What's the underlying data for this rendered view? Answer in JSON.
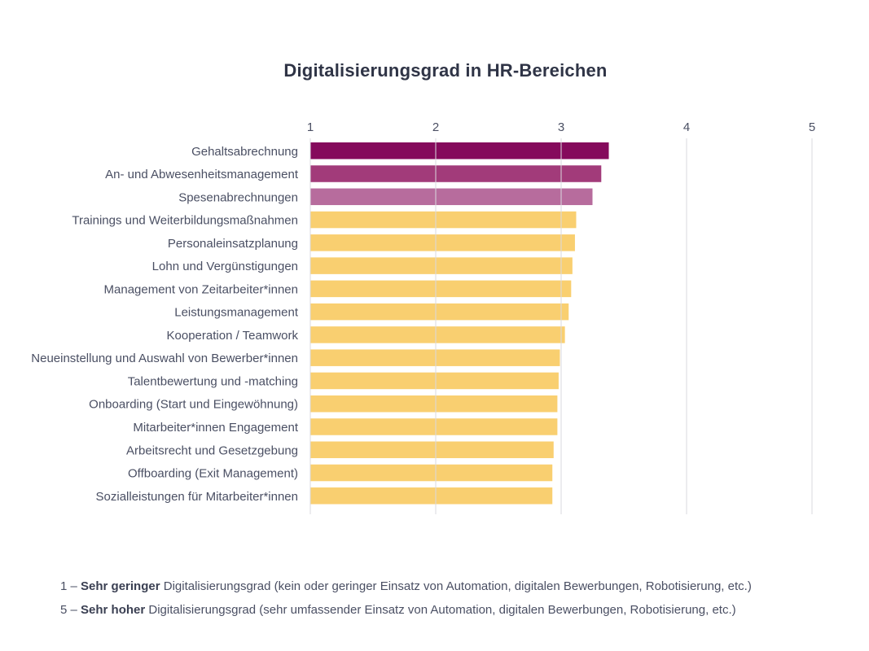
{
  "chart_data": {
    "type": "bar",
    "orientation": "horizontal",
    "title": "Digitalisierungsgrad in HR-Bereichen",
    "xlim": [
      1,
      5
    ],
    "ticks": [
      "1",
      "2",
      "3",
      "4",
      "5"
    ],
    "categories": [
      "Gehaltsabrechnung",
      "An- und Abwesenheitsmanagement",
      "Spesenabrechnungen",
      "Trainings und Weiterbildungsmaßnahmen",
      "Personaleinsatzplanung",
      "Lohn und Vergünstigungen",
      "Management von Zeitarbeiter*innen",
      "Leistungsmanagement",
      "Kooperation / Teamwork",
      "Neueinstellung und Auswahl von Bewerber*innen",
      "Talentbewertung und -matching",
      "Onboarding (Start und Eingewöhnung)",
      "Mitarbeiter*innen Engagement",
      "Arbeitsrecht und Gesetzgebung",
      "Offboarding (Exit Management)",
      "Sozialleistungen für Mitarbeiter*innen"
    ],
    "values": [
      3.38,
      3.32,
      3.25,
      3.12,
      3.11,
      3.09,
      3.08,
      3.06,
      3.03,
      2.99,
      2.98,
      2.97,
      2.97,
      2.94,
      2.93,
      2.93
    ],
    "colors": [
      "#850a5c",
      "#a23b7a",
      "#b76c9d",
      "#f9cf70",
      "#f9cf70",
      "#f9cf70",
      "#f9cf70",
      "#f9cf70",
      "#f9cf70",
      "#f9cf70",
      "#f9cf70",
      "#f9cf70",
      "#f9cf70",
      "#f9cf70",
      "#f9cf70",
      "#f9cf70"
    ],
    "grid": true
  },
  "legend": {
    "line1": {
      "prefix": "1 – ",
      "bold": "Sehr geringer",
      "rest": " Digitalisierungsgrad (kein oder geringer Einsatz von Automation, digitalen Bewerbungen, Robotisierung, etc.)"
    },
    "line2": {
      "prefix": "5 – ",
      "bold": "Sehr hoher",
      "rest": " Digitalisierungsgrad (sehr umfassender Einsatz von Automation, digitalen Bewerbungen, Robotisierung, etc.)"
    }
  },
  "colors": {
    "text": "#4a4f63",
    "title": "#2f3446",
    "grid": "#d9dadf"
  }
}
